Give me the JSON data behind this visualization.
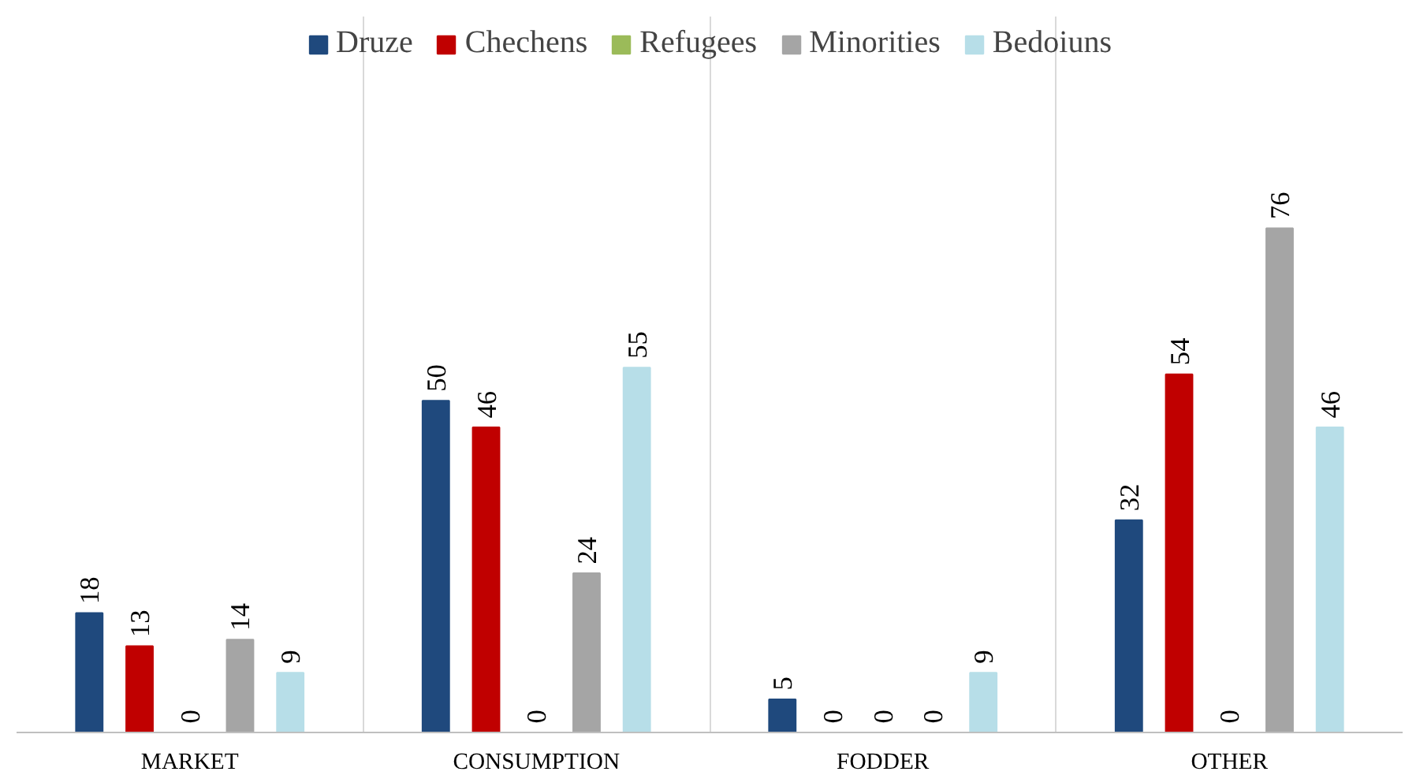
{
  "chart_data": {
    "type": "bar",
    "categories": [
      "MARKET",
      "CONSUMPTION",
      "FODDER",
      "OTHER"
    ],
    "series": [
      {
        "name": "Druze",
        "color": "#1f497d",
        "values": [
          18,
          50,
          5,
          32
        ]
      },
      {
        "name": "Chechens",
        "color": "#c00000",
        "values": [
          13,
          46,
          0,
          54
        ]
      },
      {
        "name": "Refugees",
        "color": "#9bbb59",
        "values": [
          0,
          0,
          0,
          0
        ]
      },
      {
        "name": "Minorities",
        "color": "#a5a5a5",
        "values": [
          14,
          24,
          0,
          76
        ]
      },
      {
        "name": "Bedoiuns",
        "color": "#b7dee8",
        "values": [
          9,
          55,
          9,
          46
        ]
      }
    ],
    "data_labels": true,
    "legend": "top",
    "grid": "x"
  }
}
